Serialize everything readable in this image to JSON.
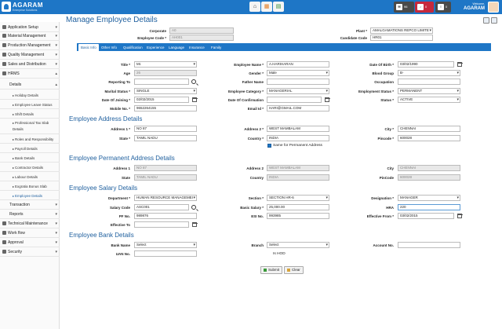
{
  "app": {
    "name": "AGARAM",
    "tagline": "Enterprise Solutions"
  },
  "topbar": {
    "notifications": [
      {
        "icon": "mail-icon",
        "count": "96",
        "color": "#4a4a4a"
      },
      {
        "icon": "bell-icon",
        "count": "0",
        "color": "#c6283c"
      },
      {
        "icon": "tasks-icon",
        "count": "0",
        "color": "#4a4a4a"
      }
    ],
    "welcome_label": "Welcome,",
    "user": "AGARAM"
  },
  "sidebar": {
    "items": [
      {
        "label": "Application Setup",
        "icon": "gear-icon"
      },
      {
        "label": "Material Management",
        "icon": "box-icon"
      },
      {
        "label": "Production Management",
        "icon": "factory-icon"
      },
      {
        "label": "Quality Management",
        "icon": "check-icon"
      },
      {
        "label": "Sales and Distribution",
        "icon": "cart-icon"
      },
      {
        "label": "HRMS",
        "icon": "users-icon"
      }
    ],
    "hrms_sub": [
      "Details"
    ],
    "details_sub": [
      "Holiday Details",
      "Employee Leave Status",
      "Shift Details",
      "Professional Tax Slab Details",
      "Roles and Responsibility",
      "Payroll Details",
      "Bank Details",
      "Contractor Details",
      "Labour Details",
      "Exgratia Bonus Slab",
      "Employee Details"
    ],
    "hrms_tail": [
      "Transaction",
      "Reports"
    ],
    "bottom": [
      {
        "label": "Technical Maintenance",
        "icon": "wrench-icon"
      },
      {
        "label": "Work flow",
        "icon": "flow-icon"
      },
      {
        "label": "Approval",
        "icon": "approval-icon"
      },
      {
        "label": "Security",
        "icon": "lock-icon"
      }
    ]
  },
  "page": {
    "title": "Manage Employee Details"
  },
  "header_form": {
    "corporate_label": "Corporate",
    "corporate_value": "A0",
    "plant_label": "Plant *",
    "plant_value": "AMALGAMATIONS REPCO LIMITE",
    "employee_code_label": "Employee Code *",
    "employee_code_value": "AH001",
    "candidate_code_label": "Candidate Code",
    "candidate_code_value": "HR01"
  },
  "tabs": [
    "Basic Info",
    "Other Info",
    "Qualification",
    "Experience",
    "Language",
    "Insurance",
    "Family"
  ],
  "basic": {
    "title_label": "Title *",
    "title_value": "Mr.",
    "employee_name_label": "Employee Name *",
    "employee_name_value": "A.HARIHARAN",
    "dob_label": "Date Of Birth *",
    "dob_value": "03/02/1990",
    "age_label": "Age",
    "age_value": "26",
    "gender_label": "Gender *",
    "gender_value": "Male",
    "blood_group_label": "Blood Group",
    "blood_group_value": "B-",
    "reporting_to_label": "Reporting To",
    "reporting_to_value": "",
    "father_name_label": "Father Name",
    "father_name_value": "",
    "occupation_label": "Occupation",
    "occupation_value": "",
    "marital_label": "Marital Status *",
    "marital_value": "SINGLE",
    "category_label": "Employee Category *",
    "category_value": "MANAGERIAL",
    "emp_status_label": "Employment Status *",
    "emp_status_value": "PERMANENT",
    "doj_label": "Date Of Joining *",
    "doj_value": "02/02/2015",
    "doc_label": "Date Of Confirmation",
    "doc_value": "",
    "status_label": "Status *",
    "status_value": "ACTIVE",
    "mobile_label": "Mobile No. *",
    "mobile_value": "9652264155",
    "email_label": "Email Id *",
    "email_value": "HARI@GMAIL.COM"
  },
  "address": {
    "section": "Employee Address Details",
    "a1_label": "Address 1 *",
    "a1_value": "NO 87",
    "a2_label": "Address 2 *",
    "a2_value": "WEST MAMBALAM",
    "city_label": "City *",
    "city_value": "CHENNAI",
    "state_label": "State *",
    "state_value": "TAMIL NADU",
    "country_label": "Country *",
    "country_value": "INDIA",
    "pin_label": "Pincode *",
    "pin_value": "600028",
    "same_label": "Same for Permanent Address"
  },
  "perm": {
    "section": "Employee Permanent Address Details",
    "a1_label": "Address 1",
    "a1_value": "NO 87",
    "a2_label": "Address 2",
    "a2_value": "WEST MAMBALAM",
    "city_label": "City",
    "city_value": "CHENNAI",
    "state_label": "State",
    "state_value": "TAMIL NADU",
    "country_label": "Country",
    "country_value": "INDIA",
    "pin_label": "PinCode",
    "pin_value": "600028"
  },
  "salary": {
    "section": "Employee Salary Details",
    "dept_label": "Department *",
    "dept_value": "HUMAN RESOURCE MANAGEMEI",
    "section_label": "Section *",
    "section_value": "SECTION HR-6",
    "desig_label": "Designation *",
    "desig_value": "MANAGER",
    "code_label": "Salary Code",
    "code_value": "ASC001",
    "basic_label": "Basic Salary *",
    "basic_value": "25,000.00",
    "hra_label": "HRA",
    "hra_value": "220",
    "pf_label": "PF No.",
    "pf_value": "989876",
    "esi_label": "ESI No.",
    "esi_value": "993985",
    "eff_from_label": "Effective From *",
    "eff_from_value": "03/02/2015",
    "eff_to_label": "Effective To",
    "eff_to_value": ""
  },
  "bank": {
    "section": "Employee Bank Details",
    "bank_label": "Bank Name",
    "bank_value": "Select",
    "branch_label": "Branch",
    "branch_value": "Select",
    "acc_label": "Account No.",
    "acc_value": "",
    "uan_label": "UAN No.",
    "uan_value": "",
    "is_hod": "Is HOD"
  },
  "actions": {
    "submit": "Submit",
    "clear": "Clear"
  }
}
